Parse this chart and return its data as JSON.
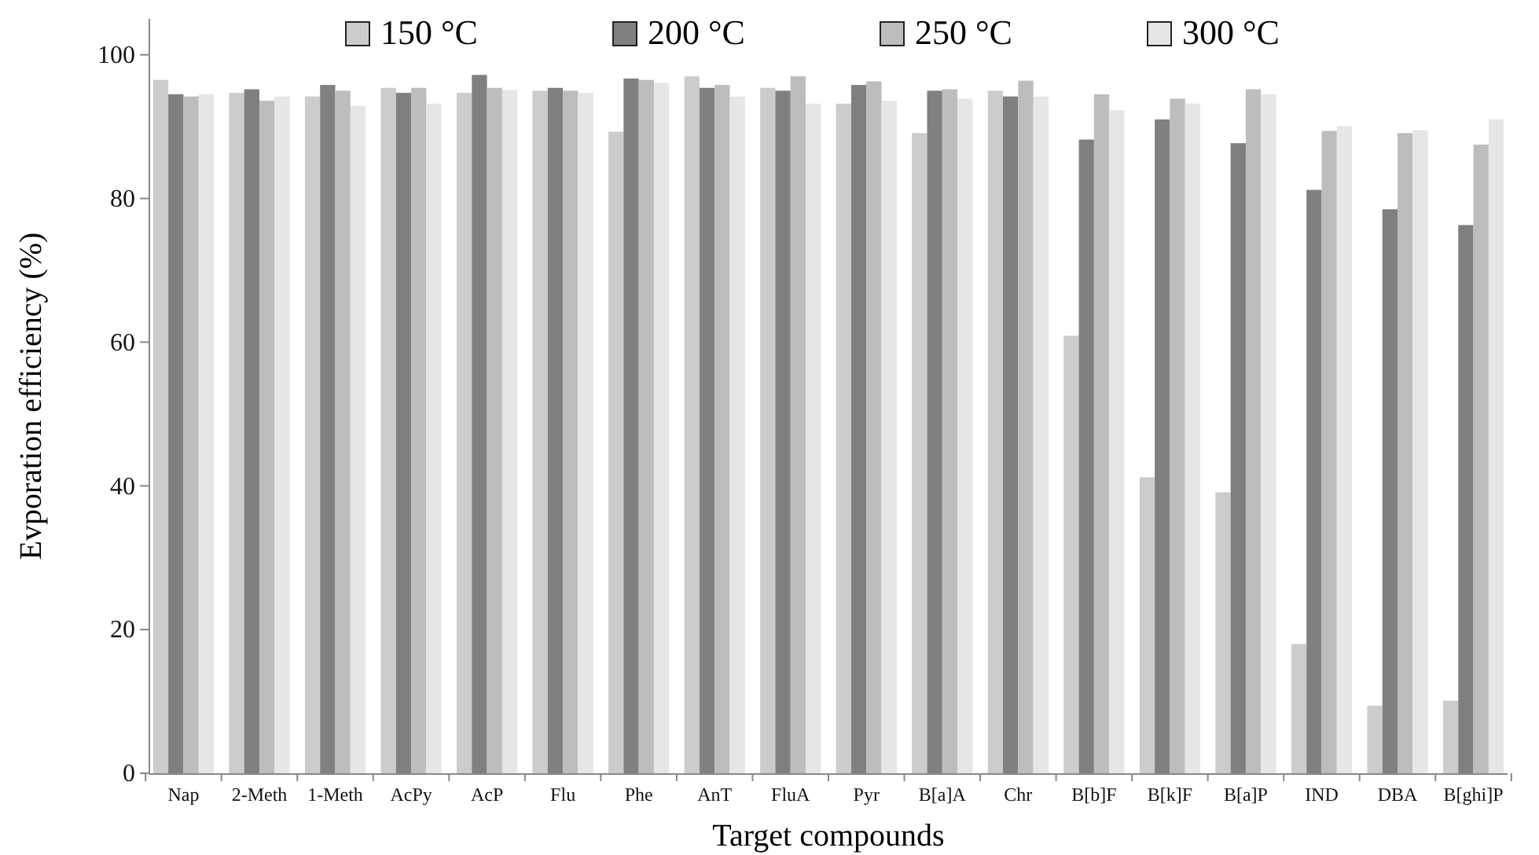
{
  "chart_data": {
    "type": "bar",
    "xlabel": "Target compounds",
    "ylabel": "Evporation efficiency (%)",
    "categories": [
      "Nap",
      "2-Meth",
      "1-Meth",
      "AcPy",
      "AcP",
      "Flu",
      "Phe",
      "AnT",
      "FluA",
      "Pyr",
      "B[a]A",
      "Chr",
      "B[b]F",
      "B[k]F",
      "B[a]P",
      "IND",
      "DBA",
      "B[ghi]P"
    ],
    "series": [
      {
        "name": "150 °C",
        "color": "#cccccc",
        "values": [
          96.5,
          94.7,
          94.2,
          95.4,
          94.7,
          95.0,
          89.3,
          97.0,
          95.4,
          93.2,
          89.1,
          95.0,
          60.9,
          41.2,
          39.1,
          18.0,
          9.4,
          10.1
        ]
      },
      {
        "name": "200 °C",
        "color": "#808080",
        "values": [
          94.5,
          95.2,
          95.8,
          94.7,
          97.2,
          95.4,
          96.7,
          95.4,
          95.0,
          95.8,
          95.0,
          94.2,
          88.2,
          91.0,
          87.7,
          81.2,
          78.5,
          76.3
        ]
      },
      {
        "name": "250 °C",
        "color": "#bdbdbd",
        "values": [
          94.2,
          93.6,
          95.0,
          95.4,
          95.4,
          95.0,
          96.5,
          95.8,
          97.0,
          96.3,
          95.2,
          96.4,
          94.5,
          93.9,
          95.2,
          89.4,
          89.1,
          87.5
        ]
      },
      {
        "name": "300 °C",
        "color": "#e6e6e6",
        "values": [
          94.5,
          94.2,
          92.9,
          93.2,
          95.1,
          94.7,
          96.1,
          94.2,
          93.2,
          93.6,
          93.9,
          94.2,
          92.3,
          93.2,
          94.5,
          90.1,
          89.5,
          91.0
        ]
      }
    ],
    "ylim": [
      0,
      105
    ],
    "yticks": [
      0,
      20,
      40,
      60,
      80,
      100
    ],
    "grid": false,
    "legend": "top"
  }
}
